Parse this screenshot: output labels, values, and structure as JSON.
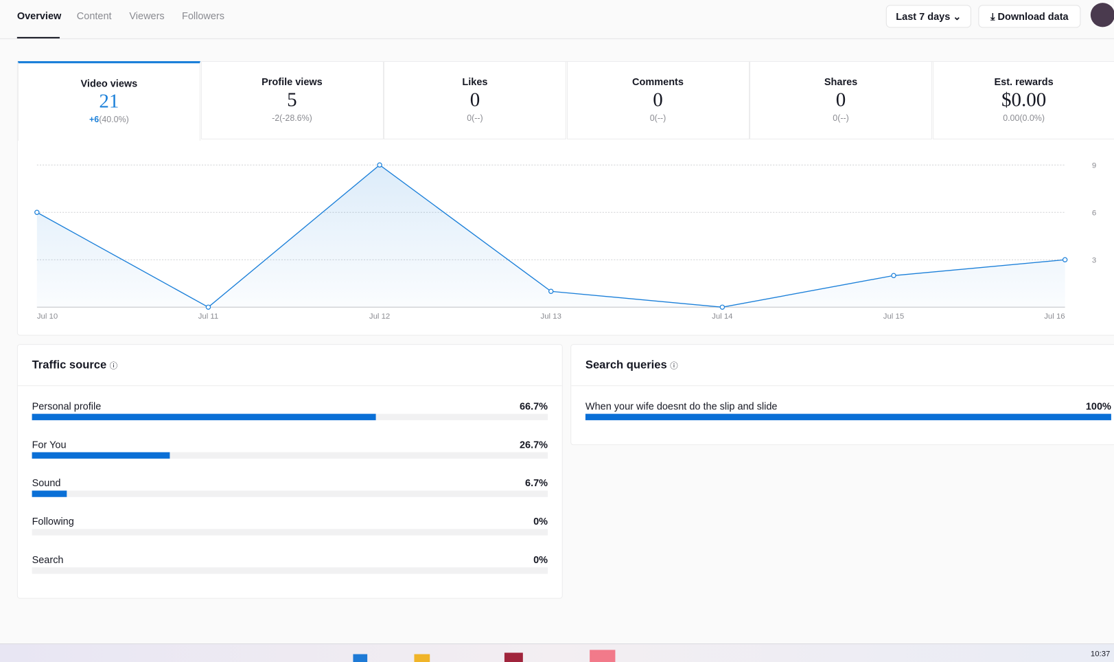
{
  "nav": {
    "tabs": [
      "Overview",
      "Content",
      "Viewers",
      "Followers"
    ],
    "date_range": "Last 7 days",
    "download": "Download data"
  },
  "metrics": [
    {
      "label": "Video views",
      "value": 21,
      "delta": "+6",
      "change": "(40.0%)"
    },
    {
      "label": "Profile views",
      "value": 5,
      "delta": "-2",
      "change": "(-28.6%)"
    },
    {
      "label": "Likes",
      "value": 0,
      "delta": "0",
      "change": "(--)"
    },
    {
      "label": "Comments",
      "value": 0,
      "delta": "0",
      "change": "(--)"
    },
    {
      "label": "Shares",
      "value": 0,
      "delta": "0",
      "change": "(--)"
    },
    {
      "label": "Est. rewards",
      "value": "$0.00",
      "delta": "0.00",
      "change": "(0.0%)"
    }
  ],
  "chart_data": {
    "type": "line",
    "categories": [
      "Jul 10",
      "Jul 11",
      "Jul 12",
      "Jul 13",
      "Jul 14",
      "Jul 15",
      "Jul 16"
    ],
    "values": [
      6,
      0,
      9,
      1,
      0,
      2,
      3
    ],
    "color": "#1a7fd9",
    "ylim": [
      0,
      9
    ],
    "yticks": [
      3,
      6,
      9
    ],
    "grid": true
  },
  "traffic_source": {
    "title": "Traffic source",
    "items": [
      "Personal profile",
      "For You",
      "Sound",
      "Following",
      "Search"
    ],
    "values": [
      66.7,
      26.7,
      6.7,
      0,
      0
    ],
    "value_labels": [
      "66.7%",
      "26.7%",
      "6.7%",
      "0%",
      "0%"
    ],
    "xlim": [
      0,
      100
    ]
  },
  "search_queries": {
    "title": "Search queries",
    "items": [
      "When your wife doesnt do the slip and slide"
    ],
    "values": [
      100
    ],
    "value_labels": [
      "100%"
    ],
    "xlim": [
      0,
      100
    ]
  },
  "taskbar": {
    "time": "10:37"
  }
}
